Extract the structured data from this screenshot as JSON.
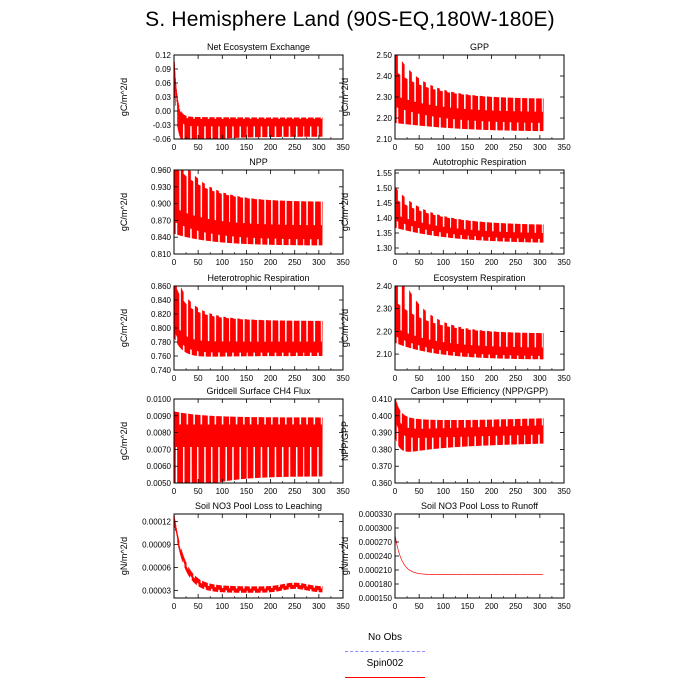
{
  "title": "S. Hemisphere Land (90S-EQ,180W-180E)",
  "legend": {
    "items": [
      {
        "label": "No Obs",
        "color": "#8888ff",
        "style": "dashed"
      },
      {
        "label": "Spin002",
        "color": "#ff0000",
        "style": "solid"
      }
    ]
  },
  "chart_data": [
    {
      "type": "line",
      "title": "Net Ecosystem Exchange",
      "ylabel": "gC/m^2/d",
      "xlim": [
        0,
        350
      ],
      "ylim": [
        -0.06,
        0.12
      ],
      "xticks": [
        "0",
        "50",
        "100",
        "150",
        "200",
        "250",
        "300",
        "350"
      ],
      "yticks": [
        "-0.06",
        "-0.03",
        "0.00",
        "0.03",
        "0.06",
        "0.09",
        "0.12"
      ],
      "series": [
        {
          "name": "Spin002",
          "color": "#ff0000",
          "x_end": 307,
          "start": 0.12,
          "base": -0.018,
          "decay": 0.09,
          "tau": 6,
          "upper": 0.004,
          "lower": -0.037,
          "spike_upper": 0.0,
          "spike_lower": 0.0,
          "trend": 0.0
        }
      ]
    },
    {
      "type": "line",
      "title": "GPP",
      "ylabel": "gC/m^2/d",
      "xlim": [
        0,
        350
      ],
      "ylim": [
        2.1,
        2.5
      ],
      "xticks": [
        "0",
        "50",
        "100",
        "150",
        "200",
        "250",
        "300",
        "350"
      ],
      "yticks": [
        "2.10",
        "2.20",
        "2.30",
        "2.40",
        "2.50"
      ],
      "series": [
        {
          "name": "Spin002",
          "color": "#ff0000",
          "x_end": 307,
          "start": 2.28,
          "base": 2.2,
          "decay": 0.07,
          "tau": 90,
          "upper": 0.09,
          "lower": -0.065,
          "spike_upper": 0.1,
          "spike_lower": 0.0,
          "trend": 0.0
        }
      ]
    },
    {
      "type": "line",
      "title": "NPP",
      "ylabel": "gC/m^2/d",
      "xlim": [
        0,
        350
      ],
      "ylim": [
        0.81,
        0.96
      ],
      "xticks": [
        "0",
        "50",
        "100",
        "150",
        "200",
        "250",
        "300",
        "350"
      ],
      "yticks": [
        "0.810",
        "0.840",
        "0.870",
        "0.900",
        "0.930",
        "0.960"
      ],
      "series": [
        {
          "name": "Spin002",
          "color": "#ff0000",
          "x_end": 307,
          "start": 0.875,
          "base": 0.843,
          "decay": 0.03,
          "tau": 70,
          "upper": 0.06,
          "lower": -0.018,
          "spike_upper": 0.035,
          "spike_lower": 0.0,
          "trend": 0.0
        }
      ]
    },
    {
      "type": "line",
      "title": "Autotrophic Respiration",
      "ylabel": "gC/m^2/d",
      "xlim": [
        0,
        350
      ],
      "ylim": [
        1.28,
        1.56
      ],
      "xticks": [
        "0",
        "50",
        "100",
        "150",
        "200",
        "250",
        "300",
        "350"
      ],
      "yticks": [
        "1.30",
        "1.35",
        "1.40",
        "1.45",
        "1.50",
        "1.55"
      ],
      "series": [
        {
          "name": "Spin002",
          "color": "#ff0000",
          "x_end": 307,
          "start": 1.4,
          "base": 1.335,
          "decay": 0.06,
          "tau": 100,
          "upper": 0.04,
          "lower": -0.02,
          "spike_upper": 0.04,
          "spike_lower": 0.0,
          "trend": 0.0
        }
      ]
    },
    {
      "type": "line",
      "title": "Heterotrophic Respiration",
      "ylabel": "gC/m^2/d",
      "xlim": [
        0,
        350
      ],
      "ylim": [
        0.74,
        0.86
      ],
      "xticks": [
        "0",
        "50",
        "100",
        "150",
        "200",
        "250",
        "300",
        "350"
      ],
      "yticks": [
        "0.740",
        "0.760",
        "0.780",
        "0.800",
        "0.820",
        "0.840",
        "0.860"
      ],
      "series": [
        {
          "name": "Spin002",
          "color": "#ff0000",
          "x_end": 307,
          "start": 0.8,
          "base": 0.768,
          "decay": 0.035,
          "tau": 18,
          "upper": 0.042,
          "lower": -0.008,
          "spike_upper": 0.02,
          "spike_lower": 0.0,
          "trend": 0.0
        }
      ]
    },
    {
      "type": "line",
      "title": "Ecosystem Respiration",
      "ylabel": "gC/m^2/d",
      "xlim": [
        0,
        350
      ],
      "ylim": [
        2.03,
        2.4
      ],
      "xticks": [
        "0",
        "50",
        "100",
        "150",
        "200",
        "250",
        "300",
        "350"
      ],
      "yticks": [
        "2.10",
        "2.20",
        "2.30",
        "2.40"
      ],
      "series": [
        {
          "name": "Spin002",
          "color": "#ff0000",
          "x_end": 307,
          "start": 2.19,
          "base": 2.1,
          "decay": 0.09,
          "tau": 80,
          "upper": 0.09,
          "lower": -0.025,
          "spike_upper": 0.2,
          "spike_lower": 0.0,
          "trend": 0.0
        }
      ]
    },
    {
      "type": "line",
      "title": "Gridcell Surface CH4 Flux",
      "ylabel": "gC/m^2/d",
      "xlim": [
        0,
        350
      ],
      "ylim": [
        0.005,
        0.01
      ],
      "xticks": [
        "0",
        "50",
        "100",
        "150",
        "200",
        "250",
        "300",
        "350"
      ],
      "yticks": [
        "0.0050",
        "0.0060",
        "0.0070",
        "0.0080",
        "0.0090",
        "0.0100"
      ],
      "series": [
        {
          "name": "Spin002",
          "color": "#ff0000",
          "x_end": 307,
          "start": 0.0083,
          "base": 0.0083,
          "decay": 0.0,
          "tau": 50,
          "upper": 0.0006,
          "lower": -0.0029,
          "spike_upper": 0.0,
          "spike_lower": 0.0,
          "trend": 0.0
        }
      ]
    },
    {
      "type": "line",
      "title": "Carbon Use Efficiency (NPP/GPP)",
      "ylabel": "NPP/GPP",
      "xlim": [
        0,
        350
      ],
      "ylim": [
        0.36,
        0.41
      ],
      "xticks": [
        "0",
        "50",
        "100",
        "150",
        "200",
        "250",
        "300",
        "350"
      ],
      "yticks": [
        "0.360",
        "0.370",
        "0.380",
        "0.390",
        "0.400",
        "0.410"
      ],
      "series": [
        {
          "name": "Spin002",
          "color": "#ff0000",
          "x_end": 307,
          "start": 0.402,
          "base": 0.39,
          "decay": 0.012,
          "tau": 10,
          "upper": 0.006,
          "lower": -0.009,
          "spike_upper": 0.0,
          "spike_lower": 0.0,
          "trend": 0.0025
        }
      ]
    },
    {
      "type": "line",
      "title": "Soil NO3 Pool Loss to Leaching",
      "ylabel": "gN/m^2/d",
      "xlim": [
        0,
        350
      ],
      "ylim": [
        2e-05,
        0.00013
      ],
      "xticks": [
        "0",
        "50",
        "100",
        "150",
        "200",
        "250",
        "300",
        "350"
      ],
      "yticks": [
        "0.00003",
        "0.00006",
        "0.00009",
        "0.00012"
      ],
      "series": [
        {
          "name": "Spin002",
          "color": "#ff0000",
          "x_end": 307,
          "start": 0.000125,
          "base": 3.1e-05,
          "decay": 9.5e-05,
          "tau": 22,
          "upper": 4e-06,
          "lower": -4e-06,
          "spike_upper": 0.0,
          "spike_lower": 0.0,
          "trend": 0.0,
          "bump": 5e-06
        }
      ]
    },
    {
      "type": "line",
      "title": "Soil NO3 Pool Loss to Runoff",
      "ylabel": "gN/m^2/d",
      "xlim": [
        0,
        350
      ],
      "ylim": [
        0.00015,
        0.00033
      ],
      "xticks": [
        "0",
        "50",
        "100",
        "150",
        "200",
        "250",
        "300",
        "350"
      ],
      "yticks": [
        "0.000150",
        "0.000180",
        "0.000210",
        "0.000240",
        "0.000270",
        "0.000300",
        "0.000330"
      ],
      "series": [
        {
          "name": "Spin002",
          "color": "#ff0000",
          "x_end": 307,
          "start": 0.000285,
          "base": 0.0002,
          "decay": 0.085,
          "tau": 14,
          "upper": 2.8e-05,
          "lower": -2.8e-05,
          "spike_upper": 0.0,
          "spike_lower": 0.0,
          "trend": 0.0,
          "scale": 0.001
        }
      ]
    }
  ]
}
